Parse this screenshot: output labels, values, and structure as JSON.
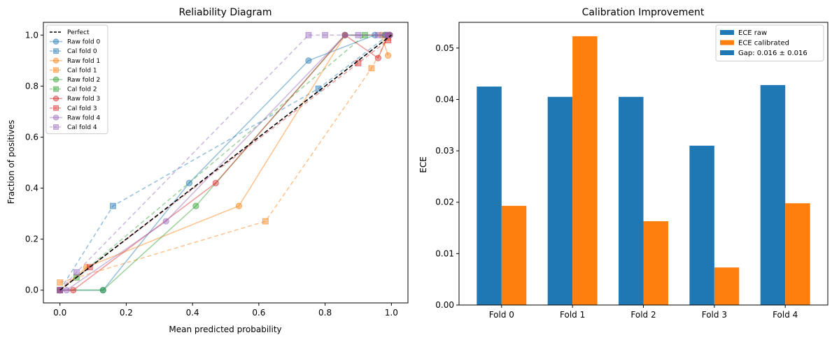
{
  "chart_data": [
    {
      "type": "line",
      "title": "Reliability Diagram",
      "xlabel": "Mean predicted probability",
      "ylabel": "Fraction of positives",
      "xlim": [
        -0.05,
        1.05
      ],
      "ylim": [
        -0.05,
        1.05
      ],
      "xticks": [
        "0.0",
        "0.2",
        "0.4",
        "0.6",
        "0.8",
        "1.0"
      ],
      "yticks": [
        "0.0",
        "0.2",
        "0.4",
        "0.6",
        "0.8",
        "1.0"
      ],
      "grid": false,
      "legend_position": "top-left",
      "colors": [
        "#000000",
        "#1f77b4",
        "#1f77b4",
        "#ff7f0e",
        "#ff7f0e",
        "#2ca02c",
        "#2ca02c",
        "#d62728",
        "#d62728",
        "#9467bd",
        "#9467bd"
      ],
      "series": [
        {
          "name": "Perfect",
          "style": "dashed",
          "marker": "none",
          "color": "#000000",
          "x": [
            0,
            1
          ],
          "y": [
            0,
            1
          ]
        },
        {
          "name": "Raw fold 0",
          "style": "solid",
          "marker": "circle",
          "color": "#1f77b4",
          "x": [
            0.0,
            0.13,
            0.39,
            0.75,
            0.95,
            0.98,
            0.995
          ],
          "y": [
            0.0,
            0.0,
            0.42,
            0.9,
            1.0,
            1.0,
            1.0
          ]
        },
        {
          "name": "Cal fold 0",
          "style": "dashed",
          "marker": "square",
          "color": "#1f77b4",
          "x": [
            0.0,
            0.16,
            0.78,
            0.99
          ],
          "y": [
            0.0,
            0.33,
            0.79,
            1.0
          ]
        },
        {
          "name": "Raw fold 1",
          "style": "solid",
          "marker": "circle",
          "color": "#ff7f0e",
          "x": [
            0.0,
            0.08,
            0.54,
            0.86,
            0.97,
            0.99
          ],
          "y": [
            0.0,
            0.09,
            0.33,
            1.0,
            1.0,
            0.92
          ]
        },
        {
          "name": "Cal fold 1",
          "style": "dashed",
          "marker": "square",
          "color": "#ff7f0e",
          "x": [
            0.0,
            0.62,
            0.94,
            0.99
          ],
          "y": [
            0.03,
            0.27,
            0.87,
            0.99
          ]
        },
        {
          "name": "Raw fold 2",
          "style": "solid",
          "marker": "circle",
          "color": "#2ca02c",
          "x": [
            0.0,
            0.13,
            0.41,
            0.86,
            0.98,
            0.995
          ],
          "y": [
            0.0,
            0.0,
            0.33,
            1.0,
            1.0,
            1.0
          ]
        },
        {
          "name": "Cal fold 2",
          "style": "dashed",
          "marker": "square",
          "color": "#2ca02c",
          "x": [
            0.0,
            0.05,
            0.92,
            0.99
          ],
          "y": [
            0.0,
            0.05,
            1.0,
            1.0
          ]
        },
        {
          "name": "Raw fold 3",
          "style": "solid",
          "marker": "circle",
          "color": "#d62728",
          "x": [
            0.0,
            0.04,
            0.47,
            0.86,
            0.96,
            0.99,
            0.995
          ],
          "y": [
            0.0,
            0.0,
            0.42,
            1.0,
            0.91,
            1.0,
            1.0
          ]
        },
        {
          "name": "Cal fold 3",
          "style": "dashed",
          "marker": "square",
          "color": "#d62728",
          "x": [
            0.0,
            0.09,
            0.9,
            0.99
          ],
          "y": [
            0.0,
            0.09,
            0.89,
            0.98
          ]
        },
        {
          "name": "Raw fold 4",
          "style": "solid",
          "marker": "circle",
          "color": "#9467bd",
          "x": [
            0.0,
            0.02,
            0.32,
            0.86,
            0.98,
            0.995
          ],
          "y": [
            0.0,
            0.0,
            0.27,
            1.0,
            1.0,
            1.0
          ]
        },
        {
          "name": "Cal fold 4",
          "style": "dashed",
          "marker": "square",
          "color": "#9467bd",
          "x": [
            0.0,
            0.05,
            0.75,
            0.8,
            0.9,
            0.96,
            0.99
          ],
          "y": [
            0.0,
            0.07,
            1.0,
            1.0,
            1.0,
            1.0,
            1.0
          ]
        }
      ]
    },
    {
      "type": "bar",
      "title": "Calibration Improvement",
      "xlabel": "",
      "ylabel": "ECE",
      "categories": [
        "Fold 0",
        "Fold 1",
        "Fold 2",
        "Fold 3",
        "Fold 4"
      ],
      "ylim": [
        0,
        0.055
      ],
      "yticks": [
        "0.00",
        "0.01",
        "0.02",
        "0.03",
        "0.04",
        "0.05"
      ],
      "grid": false,
      "legend_position": "top-right",
      "series": [
        {
          "name": "ECE raw",
          "color": "#1f77b4",
          "values": [
            0.0425,
            0.0405,
            0.0405,
            0.031,
            0.0428
          ]
        },
        {
          "name": "ECE calibrated",
          "color": "#ff7f0e",
          "values": [
            0.0193,
            0.0523,
            0.0163,
            0.0073,
            0.0198
          ]
        }
      ],
      "legend_extra": {
        "label": "Gap: 0.016 ± 0.016",
        "color": "#1f77b4"
      }
    }
  ]
}
